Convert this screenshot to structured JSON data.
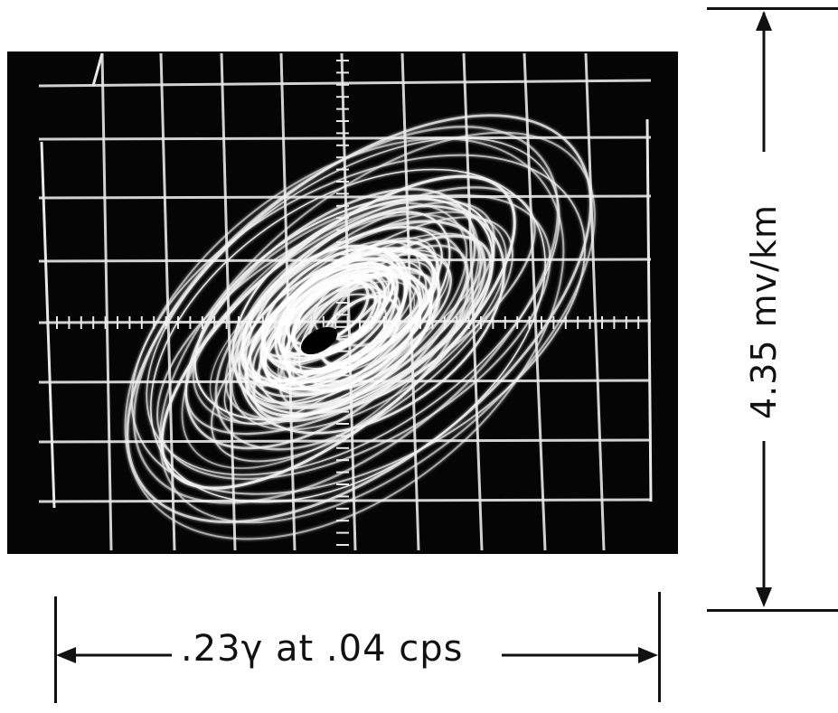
{
  "figure": {
    "horizontal_scale_label": ".23γ at .04 cps",
    "vertical_scale_label": "4.35 mv/km",
    "colors": {
      "background": "#ffffff",
      "screen": "#050505",
      "graticule": "#e8e8e8",
      "trace": "#f2f2f2",
      "ink": "#111111"
    }
  }
}
